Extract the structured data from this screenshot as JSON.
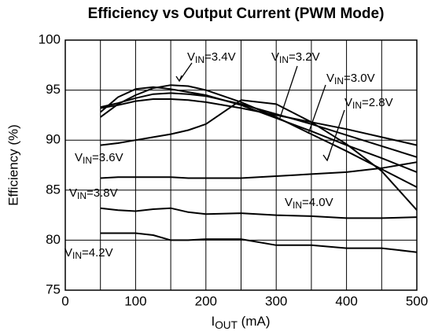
{
  "chart_data": {
    "type": "line",
    "title": "Efficiency vs Output Current (PWM Mode)",
    "x_label": "IOUT (mA)",
    "y_label": "Efficiency (%)",
    "x": [
      50,
      75,
      100,
      125,
      150,
      175,
      200,
      250,
      300,
      350,
      400,
      450,
      500
    ],
    "series": [
      {
        "name": "VIN=2.8V",
        "color": "#000000",
        "values": [
          93.2,
          93.5,
          93.9,
          94.1,
          94.1,
          94.0,
          93.8,
          93.2,
          92.5,
          91.8,
          91.1,
          90.3,
          89.5
        ]
      },
      {
        "name": "VIN=3.0V",
        "color": "#000000",
        "values": [
          93.3,
          93.7,
          94.2,
          94.6,
          94.7,
          94.6,
          94.4,
          93.6,
          92.6,
          91.6,
          90.5,
          89.4,
          88.3
        ]
      },
      {
        "name": "VIN=3.2V",
        "color": "#000000",
        "values": [
          92.8,
          94.3,
          95.1,
          95.3,
          95.1,
          94.8,
          94.5,
          93.5,
          92.2,
          90.9,
          89.5,
          88.2,
          86.8
        ]
      },
      {
        "name": "VIN=3.4V",
        "color": "#000000",
        "values": [
          92.3,
          93.6,
          94.5,
          95.2,
          95.5,
          95.4,
          95.0,
          93.8,
          92.3,
          90.6,
          88.9,
          87.1,
          85.3
        ]
      },
      {
        "name": "VIN=3.6V",
        "color": "#000000",
        "values": [
          89.5,
          89.7,
          90.0,
          90.3,
          90.6,
          91.0,
          91.6,
          94.0,
          93.6,
          91.8,
          89.6,
          86.9,
          83.0
        ]
      },
      {
        "name": "VIN=3.8V",
        "color": "#000000",
        "values": [
          86.2,
          86.3,
          86.3,
          86.3,
          86.3,
          86.2,
          86.2,
          86.2,
          86.4,
          86.6,
          86.8,
          87.2,
          87.8
        ]
      },
      {
        "name": "VIN=4.0V",
        "color": "#000000",
        "values": [
          83.2,
          83.0,
          82.9,
          83.1,
          83.2,
          82.8,
          82.6,
          82.7,
          82.5,
          82.4,
          82.2,
          82.2,
          82.3
        ]
      },
      {
        "name": "VIN=4.2V",
        "color": "#000000",
        "values": [
          80.7,
          80.7,
          80.7,
          80.5,
          80.0,
          80.0,
          80.1,
          80.1,
          79.5,
          79.5,
          79.2,
          79.2,
          78.8
        ]
      }
    ],
    "xlim": [
      0,
      500
    ],
    "xticks": [
      0,
      100,
      200,
      300,
      400,
      500
    ],
    "x_minor_ticks": [
      50,
      150,
      250,
      350,
      450
    ],
    "ylim": [
      75,
      100
    ],
    "yticks": [
      75,
      80,
      85,
      90,
      95,
      100
    ],
    "grid": true
  }
}
